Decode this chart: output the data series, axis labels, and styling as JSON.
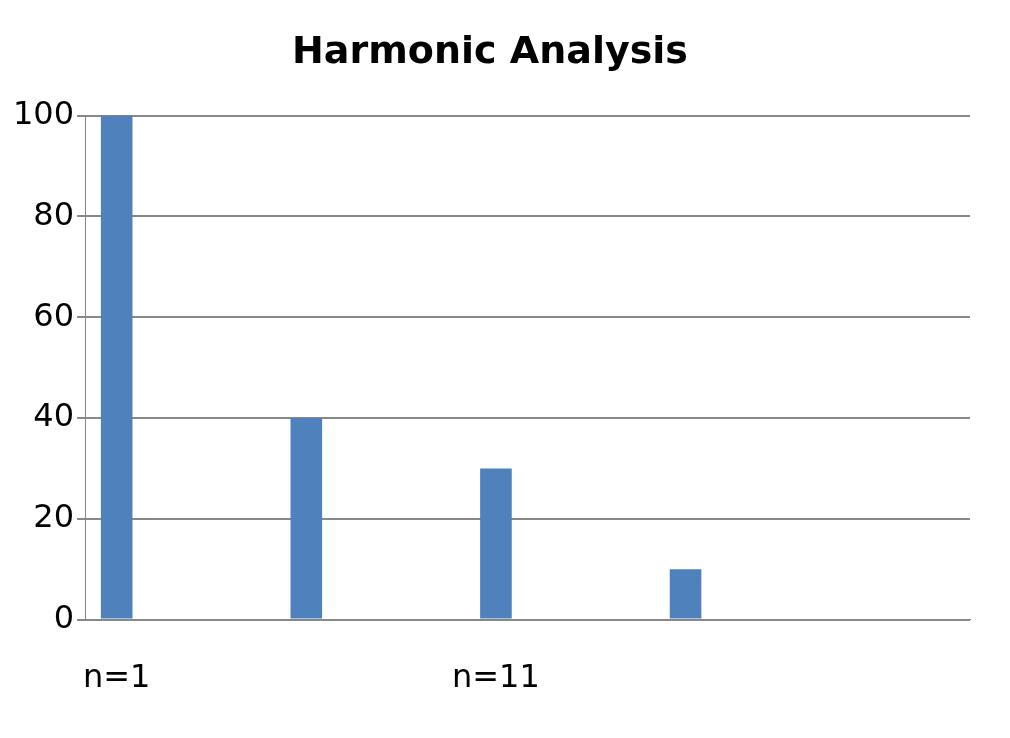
{
  "chart_data": {
    "type": "bar",
    "title": "Harmonic Analysis",
    "categories": [
      "n=1",
      null,
      null,
      null,
      null,
      null,
      "n=11",
      null,
      null,
      null,
      null,
      null,
      null,
      null
    ],
    "values": [
      100,
      null,
      null,
      40,
      null,
      null,
      30,
      null,
      null,
      10,
      null,
      null,
      null,
      null
    ],
    "color": "#4f81bd",
    "ylim": [
      0,
      100
    ],
    "yticks": [
      0,
      20,
      40,
      60,
      80,
      100
    ],
    "grid": "y",
    "legend": false
  }
}
